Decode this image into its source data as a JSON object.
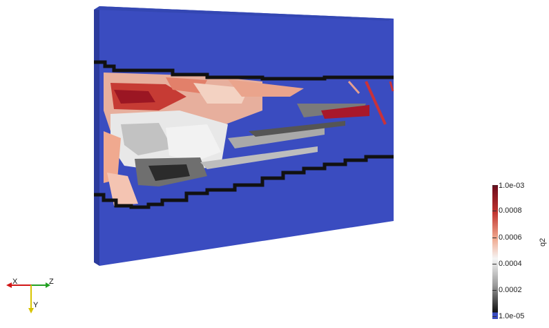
{
  "colorbar": {
    "title": "q2",
    "ticks": [
      "1.0e-03",
      "0.0008",
      "0.0006",
      "0.0004",
      "0.0002",
      "1.0e-05"
    ],
    "min_value": 1e-05,
    "max_value": 0.001,
    "colors": {
      "high": "#6b0a1b",
      "mid_high": "#e88a67",
      "mid": "#f5f5f5",
      "mid_low": "#8a8a8a",
      "low": "#111111",
      "below_range": "#3a4cc0"
    }
  },
  "orientation_axes": {
    "x_label": "X",
    "y_label": "Y",
    "z_label": "Z",
    "colors": {
      "x": "#d01515",
      "y": "#d8c400",
      "z": "#22a022"
    }
  },
  "scene": {
    "background_color": "#3a4cc0",
    "outline_color": "#111111"
  }
}
